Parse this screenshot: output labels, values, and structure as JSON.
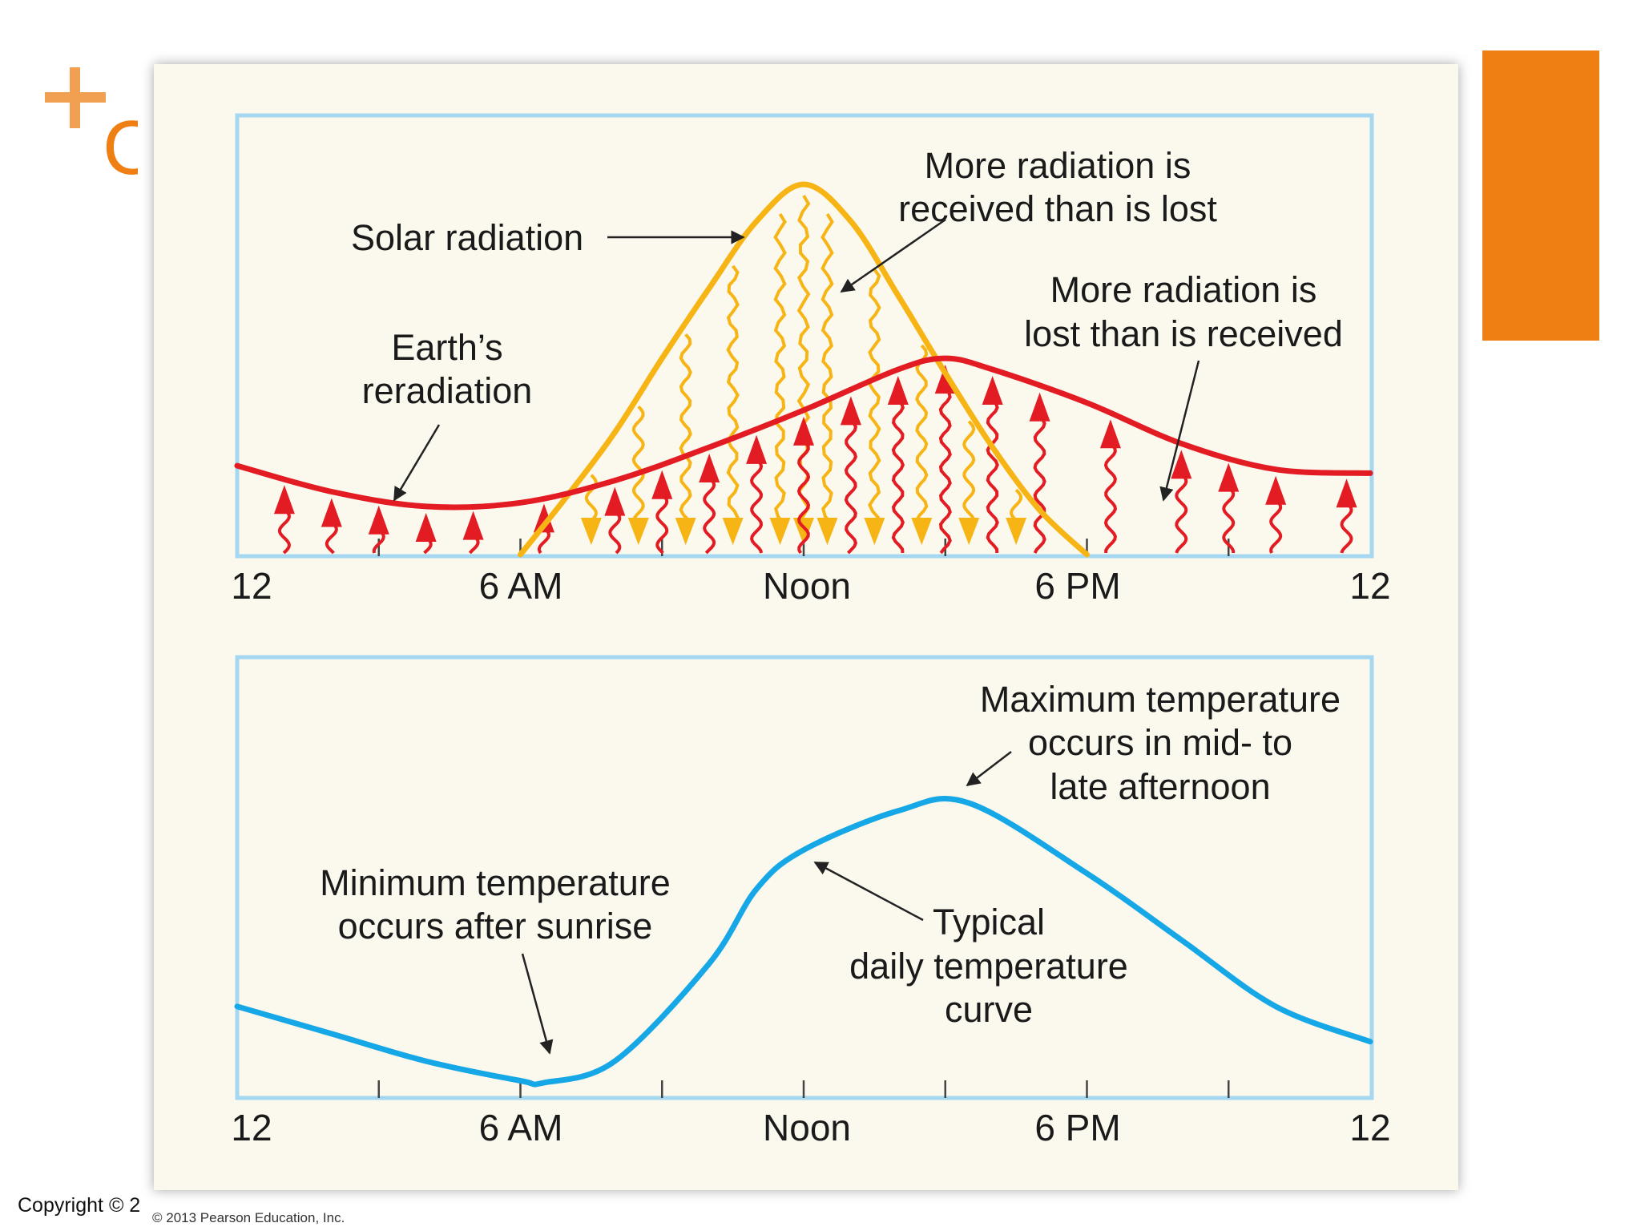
{
  "slide": {
    "title_fragment": "C",
    "copyright": "Copyright © 2",
    "credit": "© 2013 Pearson Education, Inc.",
    "colors": {
      "accent": "#ef7f13",
      "plus": "#f0a050"
    }
  },
  "chart_data": [
    {
      "type": "line",
      "x_axis": {
        "ticks": [
          "12",
          "6 AM",
          "Noon",
          "6 PM",
          "12"
        ],
        "range_hours": [
          0,
          24
        ]
      },
      "series": [
        {
          "name": "Solar radiation",
          "color": "#f7b515",
          "x_hours": [
            6,
            7,
            8,
            9,
            10,
            11,
            12,
            13,
            14,
            15,
            16,
            17,
            18
          ],
          "y_relative": [
            0,
            0.16,
            0.33,
            0.53,
            0.72,
            0.9,
            1.0,
            0.9,
            0.7,
            0.49,
            0.29,
            0.12,
            0
          ]
        },
        {
          "name": "Earth's reradiation",
          "color": "#e31b23",
          "x_hours": [
            0,
            2,
            4,
            6,
            8,
            10,
            12,
            14,
            15,
            16,
            18,
            20,
            22,
            24
          ],
          "y_relative": [
            0.24,
            0.17,
            0.13,
            0.14,
            0.2,
            0.29,
            0.39,
            0.5,
            0.53,
            0.5,
            0.41,
            0.3,
            0.23,
            0.22
          ]
        }
      ],
      "annotations": {
        "solar": "Solar radiation",
        "earth_line1": "Earth’s",
        "earth_line2": "reradiation",
        "more_received_line1": "More radiation is",
        "more_received_line2": "received than is lost",
        "more_lost_line1": "More radiation is",
        "more_lost_line2": "lost than is received"
      }
    },
    {
      "type": "line",
      "x_axis": {
        "ticks": [
          "12",
          "6 AM",
          "Noon",
          "6 PM",
          "12"
        ],
        "range_hours": [
          0,
          24
        ]
      },
      "series": [
        {
          "name": "Typical daily temperature curve",
          "color": "#16a7e6",
          "x_hours": [
            0,
            2,
            4,
            6,
            6.5,
            8,
            10,
            11,
            12,
            14,
            15.5,
            18,
            20,
            22,
            24
          ],
          "y_relative": [
            0.23,
            0.16,
            0.09,
            0.04,
            0.035,
            0.09,
            0.34,
            0.53,
            0.63,
            0.73,
            0.75,
            0.57,
            0.4,
            0.23,
            0.14
          ]
        }
      ],
      "annotations": {
        "minimum_line1": "Minimum temperature",
        "minimum_line2": "occurs after sunrise",
        "maximum_line1": "Maximum temperature",
        "maximum_line2": "occurs in mid- to",
        "maximum_line3": "late afternoon",
        "typical_line1": "Typical",
        "typical_line2": "daily temperature",
        "typical_line3": "curve"
      }
    }
  ]
}
